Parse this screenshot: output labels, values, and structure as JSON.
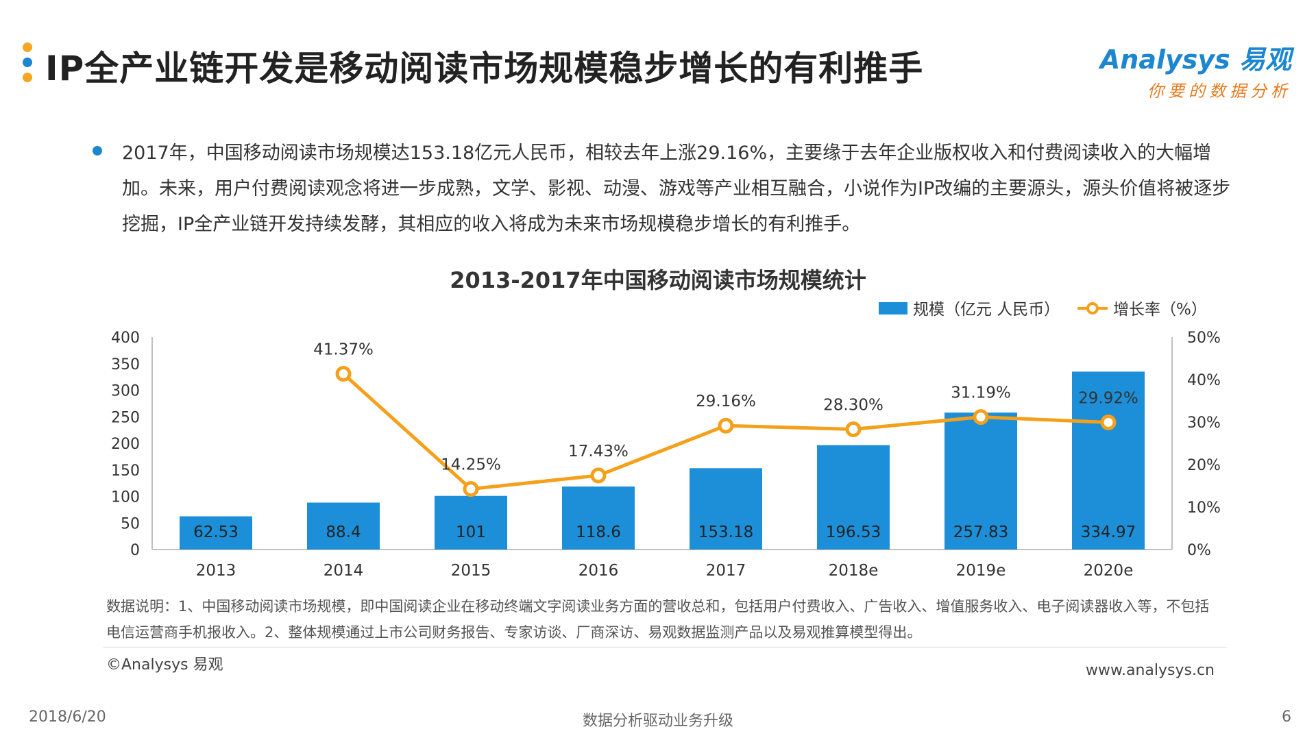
{
  "header": {
    "title": "IP全产业链开发是移动阅读市场规模稳步增长的有利推手",
    "logo_main": "Analysys 易观",
    "logo_sub": "你要的数据分析",
    "dot_colors": [
      "#f5a623",
      "#1c86d0",
      "#f5a623"
    ]
  },
  "paragraph": "2017年，中国移动阅读市场规模达153.18亿元人民币，相较去年上涨29.16%，主要缘于去年企业版权收入和付费阅读收入的大幅增加。未来，用户付费阅读观念将进一步成熟，文学、影视、动漫、游戏等产业相互融合，小说作为IP改编的主要源头，源头价值将被逐步挖掘，IP全产业链开发持续发酵，其相应的收入将成为未来市场规模稳步增长的有利推手。",
  "colors": {
    "bar": "#1c8fd8",
    "bar_light": "#0f7fd0",
    "line": "#f5a01a",
    "bullet": "#1c86d0"
  },
  "chart_data": {
    "type": "bar",
    "title": "2013-2017年中国移动阅读市场规模统计",
    "categories": [
      "2013",
      "2014",
      "2015",
      "2016",
      "2017",
      "2018e",
      "2019e",
      "2020e"
    ],
    "series": [
      {
        "name": "规模（亿元 人民币）",
        "type": "bar",
        "axis": "left",
        "values": [
          62.53,
          88.4,
          101,
          118.6,
          153.18,
          196.53,
          257.83,
          334.97
        ],
        "labels": [
          "62.53",
          "88.4",
          "101",
          "118.6",
          "153.18",
          "196.53",
          "257.83",
          "334.97"
        ]
      },
      {
        "name": "增长率（%）",
        "type": "line",
        "axis": "right",
        "values": [
          null,
          41.37,
          14.25,
          17.43,
          29.16,
          28.3,
          31.19,
          29.92
        ],
        "labels": [
          "",
          "41.37%",
          "14.25%",
          "17.43%",
          "29.16%",
          "28.30%",
          "31.19%",
          "29.92%"
        ]
      }
    ],
    "y_left": {
      "min": 0,
      "max": 400,
      "ticks": [
        "0",
        "50",
        "100",
        "150",
        "200",
        "250",
        "300",
        "350",
        "400"
      ]
    },
    "y_right": {
      "min": 0,
      "max": 50,
      "ticks": [
        "0%",
        "10%",
        "20%",
        "30%",
        "40%",
        "50%"
      ]
    },
    "legend_position": "top-right",
    "grid": false
  },
  "note": "数据说明：1、中国移动阅读市场规模，即中国阅读企业在移动终端文字阅读业务方面的营收总和，包括用户付费收入、广告收入、增值服务收入、电子阅读器收入等，不包括电信运营商手机报收入。2、整体规模通过上市公司财务报告、专家访谈、厂商深访、易观数据监测产品以及易观推算模型得出。",
  "copyright": "©Analysys 易观",
  "website": "www.analysys.cn",
  "footer": {
    "date": "2018/6/20",
    "center": "数据分析驱动业务升级",
    "page": "6"
  }
}
